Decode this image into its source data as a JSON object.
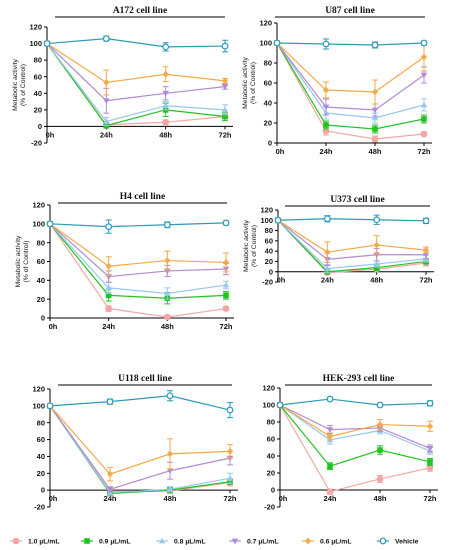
{
  "chart_data": [
    {
      "type": "line",
      "title": "A172 cell line",
      "ylabel": "Metabolic activity (% of Control)",
      "categories": [
        "0h",
        "24h",
        "48h",
        "72h"
      ],
      "y_ticks": [
        -20,
        0,
        20,
        40,
        60,
        80,
        100,
        120
      ],
      "ylim": [
        -20,
        120
      ],
      "series": [
        {
          "name": "1.0 µL/mL",
          "values": [
            100,
            2,
            5,
            12
          ],
          "err": [
            0,
            3,
            3,
            3
          ]
        },
        {
          "name": "0.9 µL/mL",
          "values": [
            100,
            1,
            20,
            12
          ],
          "err": [
            0,
            3,
            8,
            5
          ]
        },
        {
          "name": "0.8 µL/mL",
          "values": [
            100,
            6,
            25,
            20
          ],
          "err": [
            0,
            5,
            5,
            6
          ]
        },
        {
          "name": "0.7 µL/mL",
          "values": [
            100,
            31,
            40,
            48
          ],
          "err": [
            0,
            15,
            8,
            3
          ]
        },
        {
          "name": "0.6 µL/mL",
          "values": [
            100,
            53,
            63,
            55
          ],
          "err": [
            0,
            15,
            9,
            3
          ]
        },
        {
          "name": "Vehicle",
          "values": [
            100,
            106,
            96,
            97
          ],
          "err": [
            0,
            3,
            5,
            7
          ]
        }
      ]
    },
    {
      "type": "line",
      "title": "U87 cell line",
      "ylabel": "Metabolic activity (% of Control)",
      "categories": [
        "0h",
        "24h",
        "48h",
        "72h"
      ],
      "y_ticks": [
        0,
        20,
        40,
        60,
        80,
        100,
        120
      ],
      "ylim": [
        0,
        120
      ],
      "series": [
        {
          "name": "1.0 µL/mL",
          "values": [
            100,
            12,
            4,
            9
          ],
          "err": [
            0,
            4,
            3,
            2
          ]
        },
        {
          "name": "0.9 µL/mL",
          "values": [
            100,
            18,
            14,
            24
          ],
          "err": [
            0,
            4,
            4,
            4
          ]
        },
        {
          "name": "0.8 µL/mL",
          "values": [
            100,
            30,
            25,
            38
          ],
          "err": [
            0,
            6,
            5,
            6
          ]
        },
        {
          "name": "0.7 µL/mL",
          "values": [
            100,
            36,
            33,
            68
          ],
          "err": [
            0,
            8,
            6,
            8
          ]
        },
        {
          "name": "0.6 µL/mL",
          "values": [
            100,
            53,
            51,
            86
          ],
          "err": [
            0,
            8,
            12,
            14
          ]
        },
        {
          "name": "Vehicle",
          "values": [
            100,
            99,
            98,
            100
          ],
          "err": [
            0,
            5,
            3,
            2
          ]
        }
      ]
    },
    {
      "type": "line",
      "title": "H4 cell line",
      "ylabel": "Metabolic activity (% of Control)",
      "categories": [
        "0h",
        "24h",
        "48h",
        "72h"
      ],
      "y_ticks": [
        0,
        20,
        40,
        60,
        80,
        100,
        120
      ],
      "ylim": [
        0,
        120
      ],
      "series": [
        {
          "name": "1.0 µL/mL",
          "values": [
            100,
            10,
            1,
            10
          ],
          "err": [
            0,
            3,
            2,
            2
          ]
        },
        {
          "name": "0.9 µL/mL",
          "values": [
            100,
            24,
            21,
            24
          ],
          "err": [
            0,
            6,
            6,
            4
          ]
        },
        {
          "name": "0.8 µL/mL",
          "values": [
            100,
            32,
            26,
            35
          ],
          "err": [
            0,
            6,
            6,
            4
          ]
        },
        {
          "name": "0.7 µL/mL",
          "values": [
            100,
            44,
            50,
            52
          ],
          "err": [
            0,
            6,
            6,
            6
          ]
        },
        {
          "name": "0.6 µL/mL",
          "values": [
            100,
            55,
            61,
            59
          ],
          "err": [
            0,
            10,
            10,
            10
          ]
        },
        {
          "name": "Vehicle",
          "values": [
            100,
            97,
            99,
            101
          ],
          "err": [
            0,
            7,
            3,
            2
          ]
        }
      ]
    },
    {
      "type": "line",
      "title": "U373 cell line",
      "ylabel": "Metabolic activity (% of Control)",
      "categories": [
        "0h",
        "24h",
        "48h",
        "72h"
      ],
      "y_ticks": [
        -20,
        0,
        20,
        40,
        60,
        80,
        100,
        120
      ],
      "ylim": [
        -20,
        120
      ],
      "series": [
        {
          "name": "1.0 µL/mL",
          "values": [
            100,
            -2,
            5,
            17
          ],
          "err": [
            0,
            3,
            4,
            6
          ]
        },
        {
          "name": "0.9 µL/mL",
          "values": [
            100,
            0,
            8,
            20
          ],
          "err": [
            0,
            4,
            6,
            5
          ]
        },
        {
          "name": "0.8 µL/mL",
          "values": [
            100,
            6,
            15,
            25
          ],
          "err": [
            0,
            8,
            6,
            6
          ]
        },
        {
          "name": "0.7 µL/mL",
          "values": [
            100,
            24,
            33,
            33
          ],
          "err": [
            0,
            12,
            12,
            8
          ]
        },
        {
          "name": "0.6 µL/mL",
          "values": [
            100,
            38,
            52,
            42
          ],
          "err": [
            0,
            20,
            18,
            6
          ]
        },
        {
          "name": "Vehicle",
          "values": [
            100,
            103,
            101,
            99
          ],
          "err": [
            0,
            6,
            9,
            5
          ]
        }
      ]
    },
    {
      "type": "line",
      "title": "U118 cell line",
      "ylabel": "",
      "categories": [
        "0h",
        "24h",
        "48h",
        "72h"
      ],
      "y_ticks": [
        -20,
        0,
        20,
        40,
        60,
        80,
        100,
        120
      ],
      "ylim": [
        -20,
        120
      ],
      "series": [
        {
          "name": "1.0 µL/mL",
          "values": [
            100,
            -2,
            -1,
            9
          ],
          "err": [
            0,
            3,
            3,
            4
          ]
        },
        {
          "name": "0.9 µL/mL",
          "values": [
            100,
            -4,
            0,
            10
          ],
          "err": [
            0,
            3,
            3,
            3
          ]
        },
        {
          "name": "0.8 µL/mL",
          "values": [
            100,
            -3,
            1,
            14
          ],
          "err": [
            0,
            4,
            3,
            6
          ]
        },
        {
          "name": "0.7 µL/mL",
          "values": [
            100,
            1,
            23,
            38
          ],
          "err": [
            0,
            3,
            10,
            8
          ]
        },
        {
          "name": "0.6 µL/mL",
          "values": [
            100,
            19,
            43,
            46
          ],
          "err": [
            0,
            8,
            18,
            8
          ]
        },
        {
          "name": "Vehicle",
          "values": [
            100,
            105,
            112,
            95
          ],
          "err": [
            0,
            3,
            6,
            9
          ]
        }
      ]
    },
    {
      "type": "line",
      "title": "HEK-293 cell line",
      "ylabel": "",
      "categories": [
        "0h",
        "24h",
        "48h",
        "72h"
      ],
      "y_ticks": [
        -20,
        0,
        20,
        40,
        60,
        80,
        100,
        120
      ],
      "ylim": [
        -20,
        120
      ],
      "series": [
        {
          "name": "1.0 µL/mL",
          "values": [
            100,
            -2,
            13,
            26
          ],
          "err": [
            0,
            3,
            4,
            4
          ]
        },
        {
          "name": "0.9 µL/mL",
          "values": [
            100,
            28,
            47,
            33
          ],
          "err": [
            0,
            4,
            5,
            4
          ]
        },
        {
          "name": "0.8 µL/mL",
          "values": [
            100,
            59,
            70,
            46
          ],
          "err": [
            0,
            5,
            4,
            4
          ]
        },
        {
          "name": "0.7 µL/mL",
          "values": [
            100,
            71,
            73,
            49
          ],
          "err": [
            0,
            5,
            4,
            4
          ]
        },
        {
          "name": "0.6 µL/mL",
          "values": [
            100,
            63,
            77,
            75
          ],
          "err": [
            0,
            4,
            6,
            6
          ]
        },
        {
          "name": "Vehicle",
          "values": [
            100,
            107,
            100,
            102
          ],
          "err": [
            0,
            2,
            2,
            3
          ]
        }
      ]
    }
  ],
  "legend": {
    "placement": "bottom",
    "items": [
      {
        "label": "1.0 µL/mL",
        "color": "#f4a6a2",
        "marker": "circle-filled"
      },
      {
        "label": "0.9 µL/mL",
        "color": "#1fc41f",
        "marker": "square-filled"
      },
      {
        "label": "0.8 µL/mL",
        "color": "#97c8ec",
        "marker": "triangle-up"
      },
      {
        "label": "0.7 µL/mL",
        "color": "#b48ad2",
        "marker": "triangle-down"
      },
      {
        "label": "0.6 µL/mL",
        "color": "#f5a947",
        "marker": "diamond"
      },
      {
        "label": "Vehicle",
        "color": "#2a9ab8",
        "marker": "circle-open"
      }
    ]
  },
  "colors": {
    "1.0 µL/mL": "#f4a6a2",
    "0.9 µL/mL": "#1fc41f",
    "0.8 µL/mL": "#97c8ec",
    "0.7 µL/mL": "#b48ad2",
    "0.6 µL/mL": "#f5a947",
    "Vehicle": "#2a9ab8"
  }
}
